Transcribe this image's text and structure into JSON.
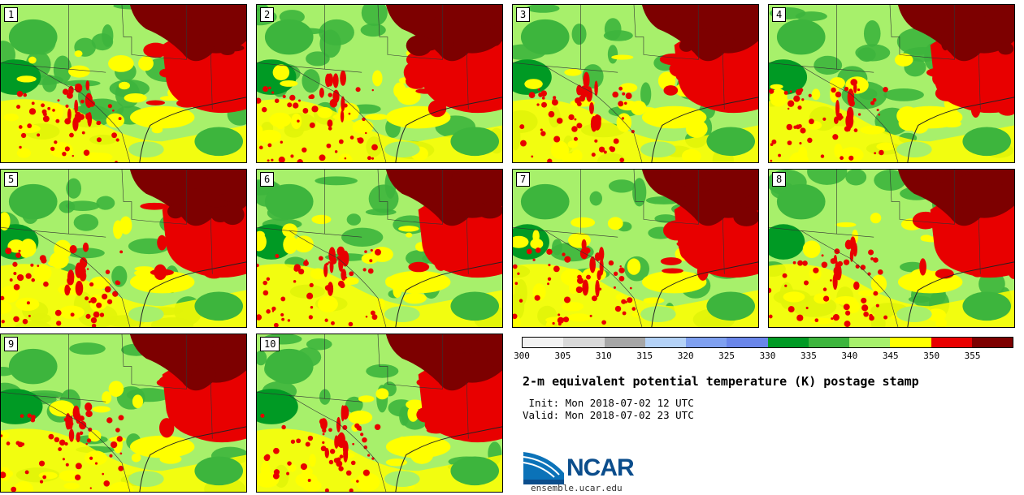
{
  "panels": [
    {
      "label": "1"
    },
    {
      "label": "2"
    },
    {
      "label": "3"
    },
    {
      "label": "4"
    },
    {
      "label": "5"
    },
    {
      "label": "6"
    },
    {
      "label": "7"
    },
    {
      "label": "8"
    },
    {
      "label": "9"
    },
    {
      "label": "10"
    }
  ],
  "colorbar": {
    "ticks": [
      "300",
      "305",
      "310",
      "315",
      "320",
      "325",
      "330",
      "335",
      "340",
      "345",
      "350",
      "355"
    ],
    "colors": [
      "#f2f2f2",
      "#d9d9d9",
      "#a6a6a6",
      "#b4d2f7",
      "#7fa0f0",
      "#6a86ea",
      "#009a24",
      "#3db53d",
      "#a7f06b",
      "#ffff00",
      "#e80000",
      "#7d0000"
    ]
  },
  "map_colors": {
    "light_green": "#a7f06b",
    "mid_green": "#3db53d",
    "dark_green": "#009a24",
    "yellow": "#ffff00",
    "red": "#e80000",
    "dark_red": "#7d0000"
  },
  "title": "2-m equivalent potential temperature (K) postage stamp",
  "init": " Init: Mon 2018-07-02 12 UTC",
  "valid": "Valid: Mon 2018-07-02 23 UTC",
  "logo": {
    "text": "NCAR",
    "website": "ensemble.ucar.edu"
  }
}
